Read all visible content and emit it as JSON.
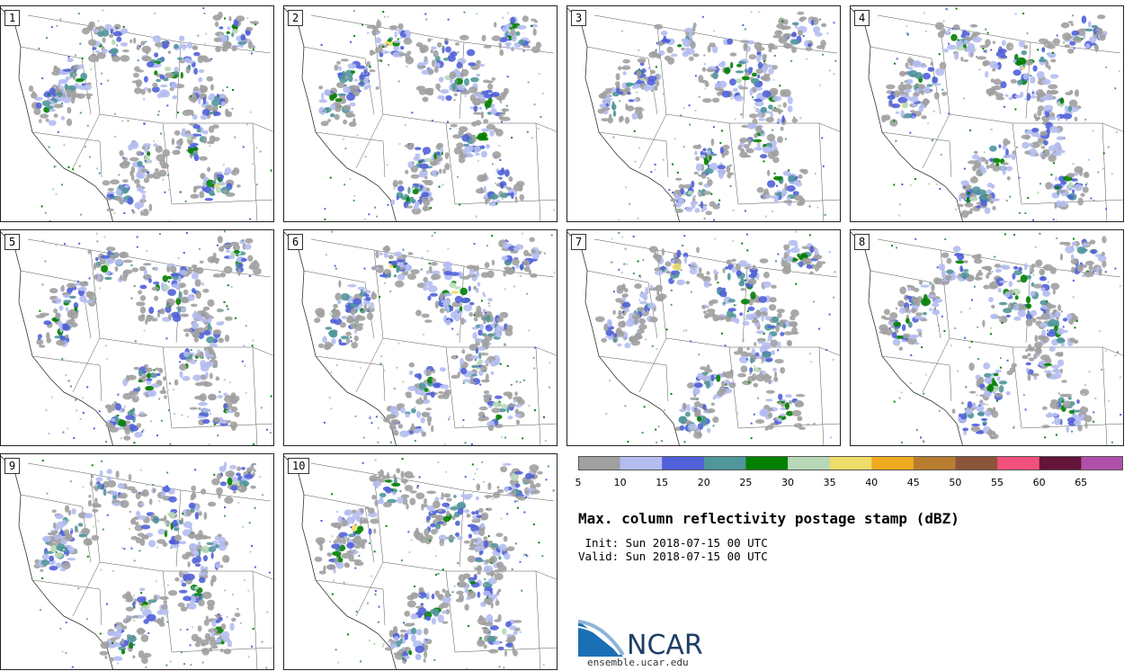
{
  "panels": [
    {
      "label": "1"
    },
    {
      "label": "2"
    },
    {
      "label": "3"
    },
    {
      "label": "4"
    },
    {
      "label": "5"
    },
    {
      "label": "6"
    },
    {
      "label": "7"
    },
    {
      "label": "8"
    },
    {
      "label": "9"
    },
    {
      "label": "10"
    }
  ],
  "colorbar": {
    "colors": [
      "#a0a0a0",
      "#b4bcf0",
      "#5060d8",
      "#50969a",
      "#008000",
      "#b8d8b8",
      "#f0dc6a",
      "#f0aa20",
      "#b87c30",
      "#8c5438",
      "#f0507c",
      "#641438",
      "#b050aa"
    ],
    "ticks": [
      "5",
      "10",
      "15",
      "20",
      "25",
      "30",
      "35",
      "40",
      "45",
      "50",
      "55",
      "60",
      "65"
    ]
  },
  "title": "Max. column reflectivity postage stamp (dBZ)",
  "init": " Init: Sun 2018-07-15 00 UTC",
  "valid": "Valid: Sun 2018-07-15 00 UTC",
  "logo": {
    "text": "NCAR",
    "url": "ensemble.ucar.edu"
  }
}
